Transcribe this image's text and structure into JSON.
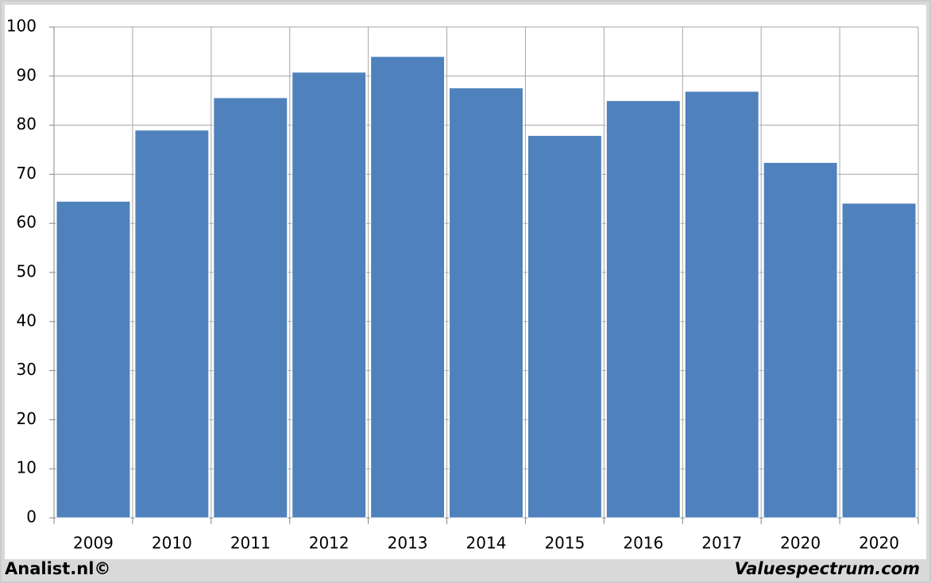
{
  "chart_data": {
    "type": "bar",
    "categories": [
      "2009",
      "2010",
      "2011",
      "2012",
      "2013",
      "2014",
      "2015",
      "2016",
      "2017",
      "2020",
      "2020"
    ],
    "values": [
      64.5,
      79,
      85.6,
      90.8,
      94,
      87.6,
      77.9,
      85,
      86.9,
      72.4,
      64.1
    ],
    "color": "#4f81bd",
    "ylim": [
      0,
      100
    ],
    "yticks": [
      0,
      10,
      20,
      30,
      40,
      50,
      60,
      70,
      80,
      90,
      100
    ],
    "grid": true
  },
  "footer": {
    "left": "Analist.nl©",
    "right": "Valuespectrum.com"
  }
}
